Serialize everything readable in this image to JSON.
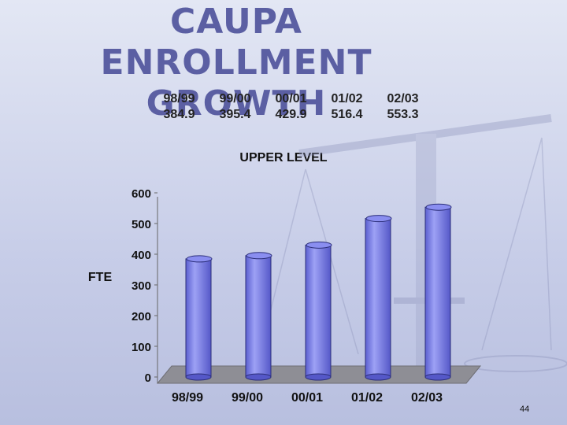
{
  "slide": {
    "title_line1": "CAUPA ENROLLMENT",
    "title_line2": "GROWTH",
    "page_number": "44"
  },
  "table": {
    "headers": [
      "98/99",
      "99/00",
      "00/01",
      "01/02",
      "02/03"
    ],
    "values": [
      "384.9",
      "395.4",
      "429.9",
      "516.4",
      "553.3"
    ]
  },
  "chart_data": {
    "type": "bar",
    "title": "UPPER LEVEL",
    "ylabel": "FTE",
    "xlabel": "",
    "categories": [
      "98/99",
      "99/00",
      "00/01",
      "01/02",
      "02/03"
    ],
    "values": [
      384.9,
      395.4,
      429.9,
      516.4,
      553.3
    ],
    "ylim": [
      0,
      600
    ],
    "yticks": [
      0,
      100,
      200,
      300,
      400,
      500,
      600
    ],
    "grid": false,
    "legend": "none",
    "style": "3d-cylinder",
    "colors": {
      "bar": "#7f83e6",
      "floor": "#8e8e95",
      "title": "#5b5fa3"
    }
  }
}
